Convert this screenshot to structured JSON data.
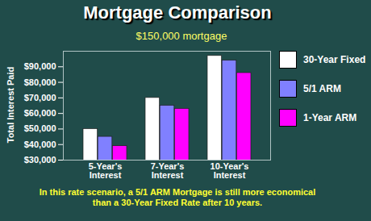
{
  "chart_data": {
    "type": "bar",
    "title": "Mortgage Comparison",
    "subtitle": "$150,000 mortgage",
    "y_label": "Total Interest Paid",
    "annotation": "In this rate scenario, a 5/1 ARM Mortgage is still more economical than a 30-Year Fixed Rate after 10 years.",
    "categories": [
      "5-Year's Interest",
      "7-Year's Interest",
      "10-Year's Interest"
    ],
    "series": [
      {
        "name": "30-Year Fixed",
        "color": "#ffffff",
        "values": [
          50000,
          70000,
          97000
        ]
      },
      {
        "name": "5/1 ARM",
        "color": "#8080ff",
        "values": [
          45000,
          65000,
          94000
        ]
      },
      {
        "name": "1-Year ARM",
        "color": "#ff00ff",
        "values": [
          39000,
          63000,
          86000
        ]
      }
    ],
    "ylim": [
      30000,
      100000
    ],
    "yticks": [
      {
        "value": 30000,
        "label": "$30,000"
      },
      {
        "value": 40000,
        "label": "$40,000"
      },
      {
        "value": 50000,
        "label": "$50,000"
      },
      {
        "value": 60000,
        "label": "$60,000"
      },
      {
        "value": 70000,
        "label": "$70,000"
      },
      {
        "value": 80000,
        "label": "$80,000"
      },
      {
        "value": 90000,
        "label": "$90,000"
      }
    ],
    "grid": false,
    "legend": "right"
  }
}
